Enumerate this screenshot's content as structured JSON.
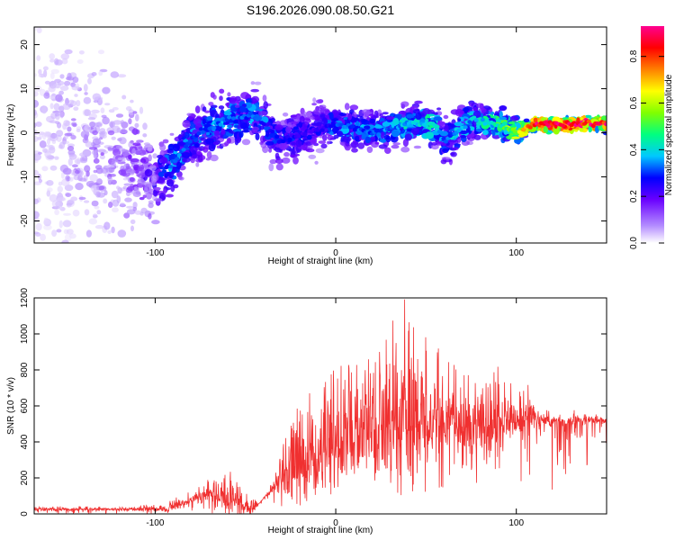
{
  "title": "S196.2026.090.08.50.G21",
  "chart_data": [
    {
      "type": "heatmap",
      "xlabel": "Height of straight line (km)",
      "ylabel": "Frequency (Hz)",
      "xlim": [
        -167,
        150
      ],
      "ylim": [
        -25,
        24
      ],
      "xticks": [
        -100,
        0,
        100
      ],
      "yticks": [
        -20,
        -10,
        0,
        10,
        20
      ],
      "colorbar": {
        "label": "Normalized spectral amplitude",
        "range": [
          0.0,
          0.93
        ],
        "ticks": [
          0.0,
          0.2,
          0.4,
          0.6,
          0.8
        ]
      },
      "ridge": [
        {
          "x": -165,
          "f": 0,
          "amp": 0.06,
          "spread": 22
        },
        {
          "x": -120,
          "f": -6,
          "amp": 0.12,
          "spread": 10
        },
        {
          "x": -100,
          "f": -10,
          "amp": 0.2,
          "spread": 6
        },
        {
          "x": -90,
          "f": -7,
          "amp": 0.33,
          "spread": 4
        },
        {
          "x": -80,
          "f": -1,
          "amp": 0.28,
          "spread": 4
        },
        {
          "x": -60,
          "f": 3,
          "amp": 0.32,
          "spread": 4
        },
        {
          "x": -45,
          "f": 4,
          "amp": 0.3,
          "spread": 4
        },
        {
          "x": -30,
          "f": -2,
          "amp": 0.25,
          "spread": 4
        },
        {
          "x": -10,
          "f": 1,
          "amp": 0.22,
          "spread": 4
        },
        {
          "x": 0,
          "f": 2,
          "amp": 0.3,
          "spread": 3
        },
        {
          "x": 20,
          "f": 0,
          "amp": 0.3,
          "spread": 3
        },
        {
          "x": 40,
          "f": 2,
          "amp": 0.35,
          "spread": 3
        },
        {
          "x": 55,
          "f": 2,
          "amp": 0.4,
          "spread": 3
        },
        {
          "x": 60,
          "f": -2,
          "amp": 0.3,
          "spread": 3
        },
        {
          "x": 75,
          "f": 3,
          "amp": 0.35,
          "spread": 3
        },
        {
          "x": 90,
          "f": 2,
          "amp": 0.42,
          "spread": 2
        },
        {
          "x": 100,
          "f": 0,
          "amp": 0.55,
          "spread": 2
        },
        {
          "x": 105,
          "f": 1,
          "amp": 0.65,
          "spread": 1
        },
        {
          "x": 110,
          "f": 2,
          "amp": 0.85,
          "spread": 1
        },
        {
          "x": 150,
          "f": 2,
          "amp": 0.85,
          "spread": 1
        }
      ]
    },
    {
      "type": "line",
      "xlabel": "Height of straight line (km)",
      "ylabel": "SNR (10 * v/v)",
      "xlim": [
        -167,
        150
      ],
      "ylim": [
        0,
        1200
      ],
      "xticks": [
        -100,
        0,
        100
      ],
      "yticks": [
        0,
        200,
        400,
        600,
        800,
        1000,
        1200
      ],
      "color": "#f03030",
      "envelope": [
        {
          "x": -167,
          "low": 0,
          "high": 45
        },
        {
          "x": -120,
          "low": 0,
          "high": 40
        },
        {
          "x": -95,
          "low": 0,
          "high": 60
        },
        {
          "x": -85,
          "low": 0,
          "high": 110
        },
        {
          "x": -75,
          "low": 0,
          "high": 170
        },
        {
          "x": -65,
          "low": 0,
          "high": 230
        },
        {
          "x": -57,
          "low": 0,
          "high": 240
        },
        {
          "x": -50,
          "low": 0,
          "high": 120
        },
        {
          "x": -42,
          "low": 0,
          "high": 60
        },
        {
          "x": -37,
          "low": 0,
          "high": 150
        },
        {
          "x": -30,
          "low": 20,
          "high": 350
        },
        {
          "x": -22,
          "low": 40,
          "high": 650
        },
        {
          "x": -10,
          "low": 80,
          "high": 700
        },
        {
          "x": 0,
          "low": 120,
          "high": 820
        },
        {
          "x": 10,
          "low": 150,
          "high": 850
        },
        {
          "x": 20,
          "low": 150,
          "high": 900
        },
        {
          "x": 30,
          "low": 120,
          "high": 1050
        },
        {
          "x": 38,
          "low": 100,
          "high": 1200
        },
        {
          "x": 50,
          "low": 120,
          "high": 1000
        },
        {
          "x": 60,
          "low": 140,
          "high": 900
        },
        {
          "x": 70,
          "low": 140,
          "high": 800
        },
        {
          "x": 80,
          "low": 140,
          "high": 740
        },
        {
          "x": 88,
          "low": 140,
          "high": 880
        },
        {
          "x": 95,
          "low": 150,
          "high": 740
        },
        {
          "x": 108,
          "low": 200,
          "high": 720
        },
        {
          "x": 112,
          "low": 130,
          "high": 600
        },
        {
          "x": 150,
          "low": 130,
          "high": 560
        }
      ],
      "baseline": [
        {
          "x": -167,
          "v": 25
        },
        {
          "x": -95,
          "v": 25
        },
        {
          "x": -70,
          "v": 110
        },
        {
          "x": -45,
          "v": 30
        },
        {
          "x": -30,
          "v": 200
        },
        {
          "x": 0,
          "v": 380
        },
        {
          "x": 40,
          "v": 520
        },
        {
          "x": 80,
          "v": 480
        },
        {
          "x": 110,
          "v": 520
        },
        {
          "x": 150,
          "v": 520
        }
      ]
    }
  ]
}
